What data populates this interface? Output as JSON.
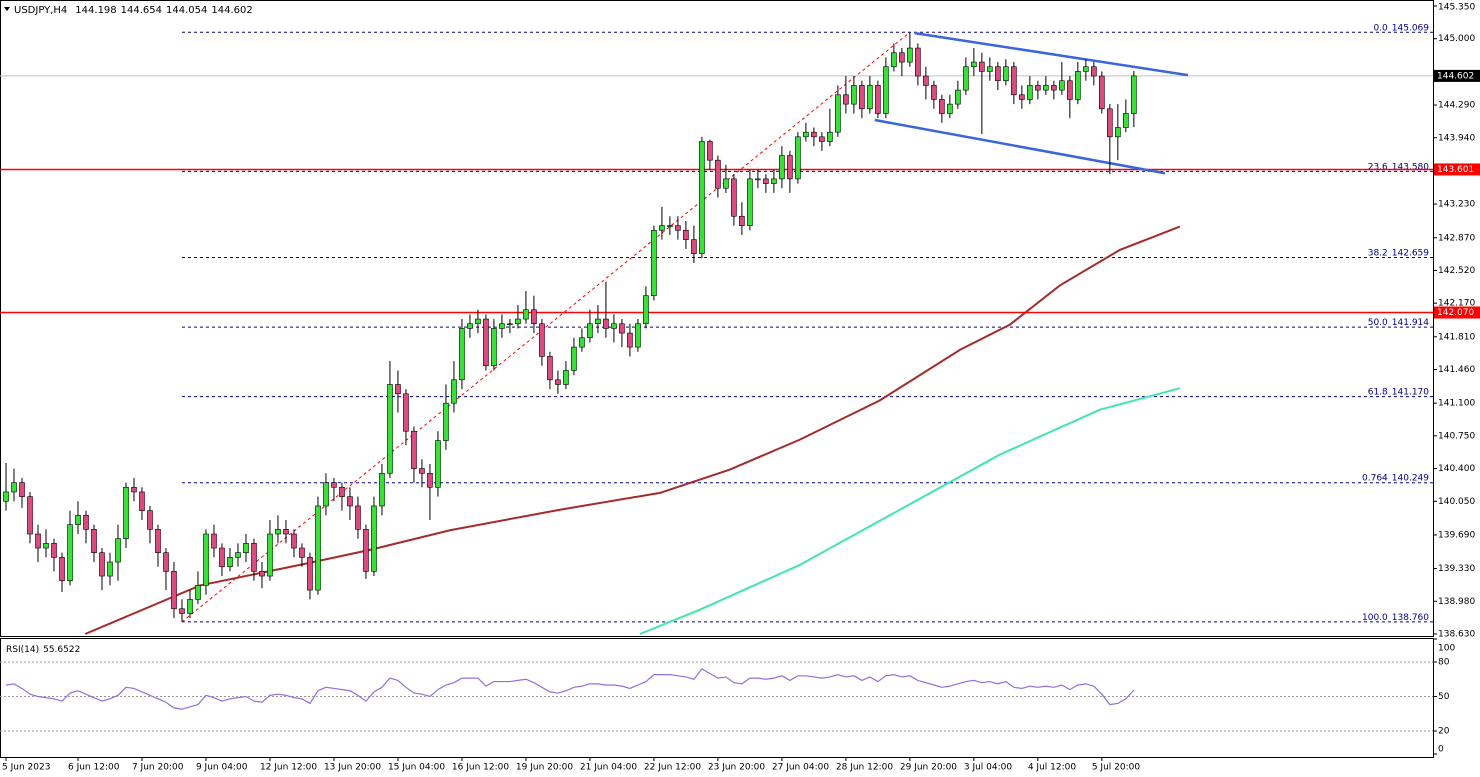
{
  "chart_data": {
    "type": "candlestick",
    "symbol": "USDJPY,H4",
    "up_color": "#2ee82e",
    "down_color": "#e6467f",
    "xlim": [
      -0.75,
      178.4
    ],
    "ylim": [
      138.63,
      145.35
    ],
    "yticks": [
      {
        "value": 145.35,
        "label": "145.350"
      },
      {
        "value": 145.0,
        "label": "145.000"
      },
      {
        "value": 144.29,
        "label": "144.290"
      },
      {
        "value": 143.94,
        "label": "143.940"
      },
      {
        "value": 143.23,
        "label": "143.230"
      },
      {
        "value": 142.87,
        "label": "142.870"
      },
      {
        "value": 142.52,
        "label": "142.520"
      },
      {
        "value": 142.17,
        "label": "142.170"
      },
      {
        "value": 141.81,
        "label": "141.810"
      },
      {
        "value": 141.46,
        "label": "141.460"
      },
      {
        "value": 141.1,
        "label": "141.100"
      },
      {
        "value": 140.75,
        "label": "140.750"
      },
      {
        "value": 140.4,
        "label": "140.400"
      },
      {
        "value": 140.05,
        "label": "140.050"
      },
      {
        "value": 139.69,
        "label": "139.690"
      },
      {
        "value": 139.33,
        "label": "139.330"
      },
      {
        "value": 138.98,
        "label": "138.980"
      },
      {
        "value": 138.63,
        "label": "138.630"
      }
    ],
    "xticks": [
      {
        "value": 0,
        "label": "5 Jun 2023"
      },
      {
        "value": 9,
        "label": "6 Jun 12:00"
      },
      {
        "value": 17,
        "label": "7 Jun 20:00"
      },
      {
        "value": 25,
        "label": "9 Jun 04:00"
      },
      {
        "value": 33,
        "label": "12 Jun 12:00"
      },
      {
        "value": 41,
        "label": "13 Jun 20:00"
      },
      {
        "value": 49,
        "label": "15 Jun 04:00"
      },
      {
        "value": 57,
        "label": "16 Jun 12:00"
      },
      {
        "value": 65,
        "label": "19 Jun 20:00"
      },
      {
        "value": 73,
        "label": "21 Jun 04:00"
      },
      {
        "value": 81,
        "label": "22 Jun 12:00"
      },
      {
        "value": 89,
        "label": "23 Jun 20:00"
      },
      {
        "value": 97,
        "label": "27 Jun 04:00"
      },
      {
        "value": 105,
        "label": "28 Jun 12:00"
      },
      {
        "value": 113,
        "label": "29 Jun 20:00"
      },
      {
        "value": 121,
        "label": "3 Jul 04:00"
      },
      {
        "value": 129,
        "label": "4 Jul 12:00"
      },
      {
        "value": 137,
        "label": "5 Jul 20:00"
      }
    ],
    "candles": [
      [
        140.05,
        140.46,
        139.95,
        140.15
      ],
      [
        140.15,
        140.4,
        140.05,
        140.25
      ],
      [
        140.25,
        140.3,
        139.98,
        140.1
      ],
      [
        140.1,
        140.15,
        139.6,
        139.7
      ],
      [
        139.7,
        139.8,
        139.4,
        139.55
      ],
      [
        139.55,
        139.75,
        139.45,
        139.6
      ],
      [
        139.6,
        139.65,
        139.3,
        139.45
      ],
      [
        139.45,
        139.5,
        139.08,
        139.2
      ],
      [
        139.2,
        139.95,
        139.15,
        139.8
      ],
      [
        139.8,
        140.05,
        139.7,
        139.9
      ],
      [
        139.9,
        139.95,
        139.6,
        139.75
      ],
      [
        139.75,
        139.8,
        139.4,
        139.5
      ],
      [
        139.5,
        139.55,
        139.1,
        139.25
      ],
      [
        139.25,
        139.5,
        139.15,
        139.4
      ],
      [
        139.4,
        139.8,
        139.2,
        139.65
      ],
      [
        139.65,
        140.25,
        139.55,
        140.2
      ],
      [
        140.2,
        140.3,
        140.05,
        140.15
      ],
      [
        140.15,
        140.2,
        139.85,
        139.95
      ],
      [
        139.95,
        140.0,
        139.6,
        139.75
      ],
      [
        139.75,
        139.8,
        139.35,
        139.5
      ],
      [
        139.5,
        139.55,
        139.1,
        139.3
      ],
      [
        139.3,
        139.4,
        138.8,
        138.9
      ],
      [
        138.9,
        139.0,
        138.76,
        138.85
      ],
      [
        138.85,
        139.1,
        138.8,
        139.0
      ],
      [
        139.0,
        139.3,
        138.95,
        139.15
      ],
      [
        139.15,
        139.75,
        139.05,
        139.7
      ],
      [
        139.7,
        139.8,
        139.45,
        139.55
      ],
      [
        139.55,
        139.6,
        139.25,
        139.35
      ],
      [
        139.35,
        139.55,
        139.3,
        139.45
      ],
      [
        139.45,
        139.6,
        139.35,
        139.5
      ],
      [
        139.5,
        139.7,
        139.4,
        139.6
      ],
      [
        139.6,
        139.65,
        139.2,
        139.3
      ],
      [
        139.3,
        139.4,
        139.12,
        139.25
      ],
      [
        139.25,
        139.85,
        139.2,
        139.7
      ],
      [
        139.7,
        139.9,
        139.6,
        139.75
      ],
      [
        139.75,
        139.85,
        139.6,
        139.7
      ],
      [
        139.7,
        139.75,
        139.45,
        139.55
      ],
      [
        139.55,
        139.6,
        139.35,
        139.45
      ],
      [
        139.45,
        139.5,
        139.0,
        139.1
      ],
      [
        139.1,
        140.1,
        139.05,
        140.0
      ],
      [
        140.0,
        140.35,
        139.9,
        140.25
      ],
      [
        140.25,
        140.3,
        140.05,
        140.2
      ],
      [
        140.2,
        140.25,
        139.95,
        140.1
      ],
      [
        140.1,
        140.2,
        139.85,
        140.0
      ],
      [
        140.0,
        140.1,
        139.65,
        139.75
      ],
      [
        139.75,
        139.8,
        139.22,
        139.3
      ],
      [
        139.3,
        140.1,
        139.25,
        140.0
      ],
      [
        140.0,
        140.45,
        139.9,
        140.35
      ],
      [
        140.35,
        141.55,
        140.3,
        141.3
      ],
      [
        141.3,
        141.45,
        141.0,
        141.2
      ],
      [
        141.2,
        141.25,
        140.65,
        140.8
      ],
      [
        140.8,
        140.85,
        140.25,
        140.4
      ],
      [
        140.4,
        140.5,
        140.2,
        140.35
      ],
      [
        140.35,
        140.45,
        139.85,
        140.2
      ],
      [
        140.2,
        140.8,
        140.1,
        140.7
      ],
      [
        140.7,
        141.3,
        140.6,
        141.1
      ],
      [
        141.1,
        141.55,
        141.0,
        141.35
      ],
      [
        141.35,
        142.0,
        141.25,
        141.9
      ],
      [
        141.9,
        142.05,
        141.8,
        141.95
      ],
      [
        141.95,
        142.1,
        141.85,
        142.0
      ],
      [
        142.0,
        142.05,
        141.45,
        141.5
      ],
      [
        141.5,
        142.0,
        141.45,
        141.9
      ],
      [
        141.9,
        142.05,
        141.8,
        141.95
      ],
      [
        141.95,
        142.0,
        141.85,
        141.95
      ],
      [
        141.95,
        142.15,
        141.9,
        142.0
      ],
      [
        142.0,
        142.3,
        141.95,
        142.1
      ],
      [
        142.1,
        142.25,
        141.85,
        141.95
      ],
      [
        141.95,
        142.0,
        141.5,
        141.6
      ],
      [
        141.6,
        141.65,
        141.25,
        141.35
      ],
      [
        141.35,
        141.45,
        141.2,
        141.3
      ],
      [
        141.3,
        141.55,
        141.25,
        141.45
      ],
      [
        141.45,
        141.8,
        141.4,
        141.7
      ],
      [
        141.7,
        141.9,
        141.65,
        141.8
      ],
      [
        141.8,
        142.1,
        141.75,
        141.95
      ],
      [
        141.95,
        142.15,
        141.85,
        142.0
      ],
      [
        142.0,
        142.4,
        141.8,
        141.9
      ],
      [
        141.9,
        142.05,
        141.75,
        141.95
      ],
      [
        141.95,
        142.0,
        141.7,
        141.85
      ],
      [
        141.85,
        141.95,
        141.6,
        141.7
      ],
      [
        141.7,
        142.0,
        141.65,
        141.95
      ],
      [
        141.95,
        142.35,
        141.9,
        142.25
      ],
      [
        142.25,
        143.0,
        142.2,
        142.95
      ],
      [
        142.95,
        143.2,
        142.85,
        143.0
      ],
      [
        143.0,
        143.1,
        142.9,
        143.0
      ],
      [
        143.0,
        143.1,
        142.85,
        142.95
      ],
      [
        142.95,
        143.05,
        142.75,
        142.85
      ],
      [
        142.85,
        143.0,
        142.6,
        142.7
      ],
      [
        142.7,
        143.95,
        142.65,
        143.9
      ],
      [
        143.9,
        143.92,
        143.6,
        143.7
      ],
      [
        143.7,
        143.75,
        143.3,
        143.4
      ],
      [
        143.4,
        143.65,
        143.35,
        143.5
      ],
      [
        143.5,
        143.55,
        143.0,
        143.1
      ],
      [
        143.1,
        143.25,
        142.9,
        143.0
      ],
      [
        143.0,
        143.6,
        142.95,
        143.5
      ],
      [
        143.5,
        143.6,
        143.4,
        143.5
      ],
      [
        143.5,
        143.55,
        143.35,
        143.45
      ],
      [
        143.45,
        143.6,
        143.35,
        143.5
      ],
      [
        143.5,
        143.85,
        143.4,
        143.75
      ],
      [
        143.75,
        143.8,
        143.35,
        143.5
      ],
      [
        143.5,
        144.0,
        143.45,
        143.95
      ],
      [
        143.95,
        144.1,
        143.9,
        144.0
      ],
      [
        144.0,
        144.05,
        143.85,
        143.95
      ],
      [
        143.95,
        144.0,
        143.8,
        143.9
      ],
      [
        143.9,
        144.25,
        143.85,
        144.0
      ],
      [
        144.0,
        144.5,
        143.95,
        144.4
      ],
      [
        144.4,
        144.6,
        144.2,
        144.3
      ],
      [
        144.3,
        144.6,
        144.2,
        144.5
      ],
      [
        144.5,
        144.55,
        144.15,
        144.25
      ],
      [
        144.25,
        144.6,
        144.2,
        144.5
      ],
      [
        144.5,
        144.55,
        144.15,
        144.2
      ],
      [
        144.2,
        144.8,
        144.15,
        144.7
      ],
      [
        144.7,
        144.95,
        144.65,
        144.85
      ],
      [
        144.85,
        144.9,
        144.6,
        144.75
      ],
      [
        144.75,
        145.07,
        144.7,
        144.9
      ],
      [
        144.9,
        144.95,
        144.5,
        144.6
      ],
      [
        144.6,
        144.7,
        144.35,
        144.5
      ],
      [
        144.5,
        144.55,
        144.25,
        144.35
      ],
      [
        144.35,
        144.4,
        144.1,
        144.2
      ],
      [
        144.2,
        144.4,
        144.15,
        144.3
      ],
      [
        144.3,
        144.55,
        144.25,
        144.45
      ],
      [
        144.45,
        144.8,
        144.4,
        144.7
      ],
      [
        144.7,
        144.9,
        144.6,
        144.75
      ],
      [
        144.75,
        144.85,
        143.98,
        144.65
      ],
      [
        144.65,
        144.8,
        144.55,
        144.7
      ],
      [
        144.7,
        144.75,
        144.45,
        144.55
      ],
      [
        144.55,
        144.78,
        144.5,
        144.7
      ],
      [
        144.7,
        144.75,
        144.3,
        144.4
      ],
      [
        144.4,
        144.5,
        144.25,
        144.35
      ],
      [
        144.35,
        144.6,
        144.3,
        144.5
      ],
      [
        144.5,
        144.55,
        144.35,
        144.45
      ],
      [
        144.45,
        144.6,
        144.4,
        144.5
      ],
      [
        144.5,
        144.55,
        144.35,
        144.45
      ],
      [
        144.45,
        144.75,
        144.4,
        144.55
      ],
      [
        144.55,
        144.6,
        144.15,
        144.35
      ],
      [
        144.35,
        144.75,
        144.3,
        144.65
      ],
      [
        144.65,
        144.78,
        144.55,
        144.7
      ],
      [
        144.7,
        144.75,
        144.5,
        144.6
      ],
      [
        144.6,
        144.65,
        144.2,
        144.25
      ],
      [
        144.25,
        144.3,
        143.55,
        143.95
      ],
      [
        143.95,
        144.3,
        143.7,
        144.05
      ],
      [
        144.05,
        144.35,
        144.0,
        144.2
      ],
      [
        144.198,
        144.654,
        144.054,
        144.602
      ]
    ],
    "levels": [
      {
        "value": 143.601,
        "color": "#ff0000"
      },
      {
        "value": {
          "value": 142.07,
          "label": "142.070"
        },
        "color": "#ff0000"
      }
    ],
    "current_price_color": "#c0c0c0",
    "fibonacci": {
      "color": "#00008b",
      "line_color": "#ff0000",
      "anchor_x": [
        22,
        113
      ],
      "levels": [
        {
          "level": "0.0",
          "value": 145.069
        },
        {
          "level": "23.6",
          "value": {
            "value": 143.58,
            "label": "143.580"
          }
        },
        {
          "level": "38.2",
          "value": 142.659
        },
        {
          "level": "50.0",
          "value": 141.914
        },
        {
          "level": "61.8",
          "value": {
            "value": 141.17,
            "label": "141.170"
          }
        },
        {
          "level": "0.764",
          "value": 140.249
        },
        {
          "level": "100.0",
          "value": {
            "value": 138.76,
            "label": "138.760"
          }
        }
      ]
    },
    "moving_averages": [
      {
        "color": "#a52a2a",
        "x": [
          9.9,
          24.25,
          36.75,
          45.5,
          55.5,
          69.25,
          81.75,
          90.5,
          99.25,
          109.25,
          119.25,
          125.5,
          131.75,
          139.25,
          146.75
        ],
        "values": [
          138.63,
          139.15,
          139.37,
          139.53,
          139.74,
          139.96,
          140.14,
          140.39,
          140.71,
          141.13,
          141.67,
          141.94,
          142.36,
          142.74,
          142.99
        ]
      },
      {
        "color": "#3ee8a8",
        "x": [
          79.25,
          86.75,
          99.25,
          111.75,
          124.25,
          136.75,
          146.75
        ],
        "values": [
          138.63,
          138.89,
          139.37,
          139.96,
          140.55,
          141.03,
          141.26
        ]
      }
    ],
    "trendlines": [
      {
        "color": "#3a66dd",
        "x": [
          113.6,
          147.75
        ],
        "values": [
          145.06,
          144.61
        ]
      },
      {
        "color": "#3a66dd",
        "x": [
          108.6,
          144.9
        ],
        "values": [
          144.13,
          143.56
        ]
      }
    ],
    "rsi": {
      "title": "RSI(14)",
      "color": "#9370db",
      "ylim": [
        0,
        100
      ],
      "yticks": [
        100,
        80,
        50,
        20,
        0
      ],
      "levels": [
        80,
        50,
        20
      ],
      "values": [
        60,
        61,
        57,
        52,
        50,
        49,
        48,
        46,
        53,
        55,
        52,
        49,
        46,
        48,
        51,
        58,
        57,
        54,
        51,
        48,
        45,
        40,
        39,
        41,
        43,
        51,
        49,
        46,
        48,
        49,
        50,
        46,
        45,
        51,
        52,
        51,
        49,
        48,
        44,
        55,
        58,
        57,
        56,
        55,
        51,
        46,
        54,
        58,
        66,
        64,
        58,
        53,
        52,
        50,
        56,
        60,
        62,
        66,
        66,
        66,
        59,
        63,
        63,
        63,
        64,
        65,
        62,
        58,
        54,
        53,
        55,
        58,
        59,
        61,
        61,
        60,
        60,
        59,
        57,
        60,
        63,
        69,
        69,
        69,
        68,
        67,
        65,
        74,
        70,
        66,
        67,
        62,
        61,
        66,
        66,
        65,
        66,
        68,
        64,
        68,
        68,
        67,
        66,
        67,
        69,
        67,
        68,
        64,
        67,
        63,
        68,
        69,
        67,
        68,
        64,
        62,
        60,
        58,
        59,
        61,
        63,
        64,
        62,
        63,
        61,
        63,
        58,
        57,
        59,
        58,
        59,
        58,
        60,
        56,
        60,
        61,
        59,
        52,
        43,
        44,
        48,
        55.6522
      ]
    }
  }
}
